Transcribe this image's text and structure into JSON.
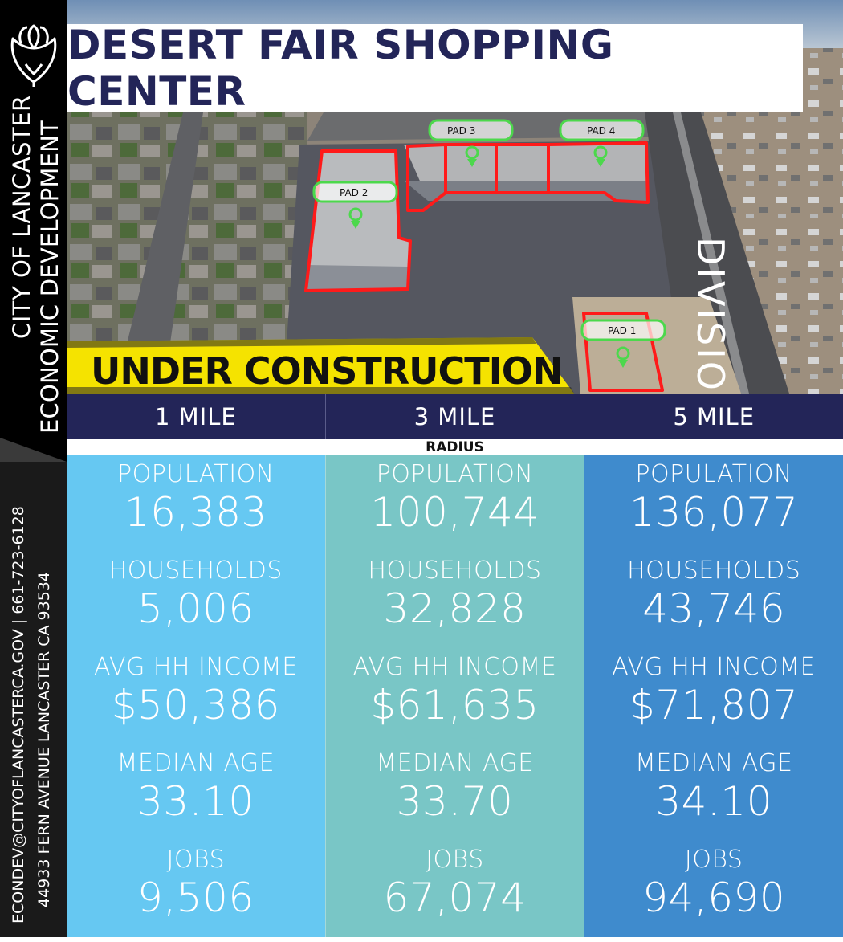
{
  "header": {
    "title": "DESERT FAIR SHOPPING CENTER"
  },
  "sidebar": {
    "org_line1": "CITY OF LANCASTER",
    "org_line2": "ECONOMIC DEVELOPMENT",
    "contact_line1": "ECONDEV@CITYOFLANCASTERCA.GOV | 661-723-6128",
    "contact_line2": "44933 FERN AVENUE LANCASTER CA 93534",
    "logo_icon": "poppy-flower-icon"
  },
  "aerial": {
    "banner": "UNDER CONSTRUCTION",
    "street": "DIVISION",
    "pads": [
      "PAD 1",
      "PAD 2",
      "PAD 3",
      "PAD 4"
    ],
    "parcel_outline_color": "#ff1a1a",
    "pad_marker_color": "#4cd84c",
    "tape_color": "#f5e300"
  },
  "radius": {
    "caption": "RADIUS",
    "labels": [
      "1 MILE",
      "3 MILE",
      "5 MILE"
    ]
  },
  "stats": {
    "labels": {
      "population": "POPULATION",
      "households": "HOUSEHOLDS",
      "income": "AVG HH INCOME",
      "age": "MEDIAN AGE",
      "jobs": "JOBS"
    },
    "columns": [
      {
        "population": "16,383",
        "households": "5,006",
        "income": "$50,386",
        "age": "33.10",
        "jobs": "9,506"
      },
      {
        "population": "100,744",
        "households": "32,828",
        "income": "$61,635",
        "age": "33.70",
        "jobs": "67,074"
      },
      {
        "population": "136,077",
        "households": "43,746",
        "income": "$71,807",
        "age": "34.10",
        "jobs": "94,690"
      }
    ]
  },
  "colors": {
    "navy": "#232558",
    "col_1mile": "#66c8f2",
    "col_3mile": "#79c6c6",
    "col_5mile": "#3f8bcd"
  }
}
